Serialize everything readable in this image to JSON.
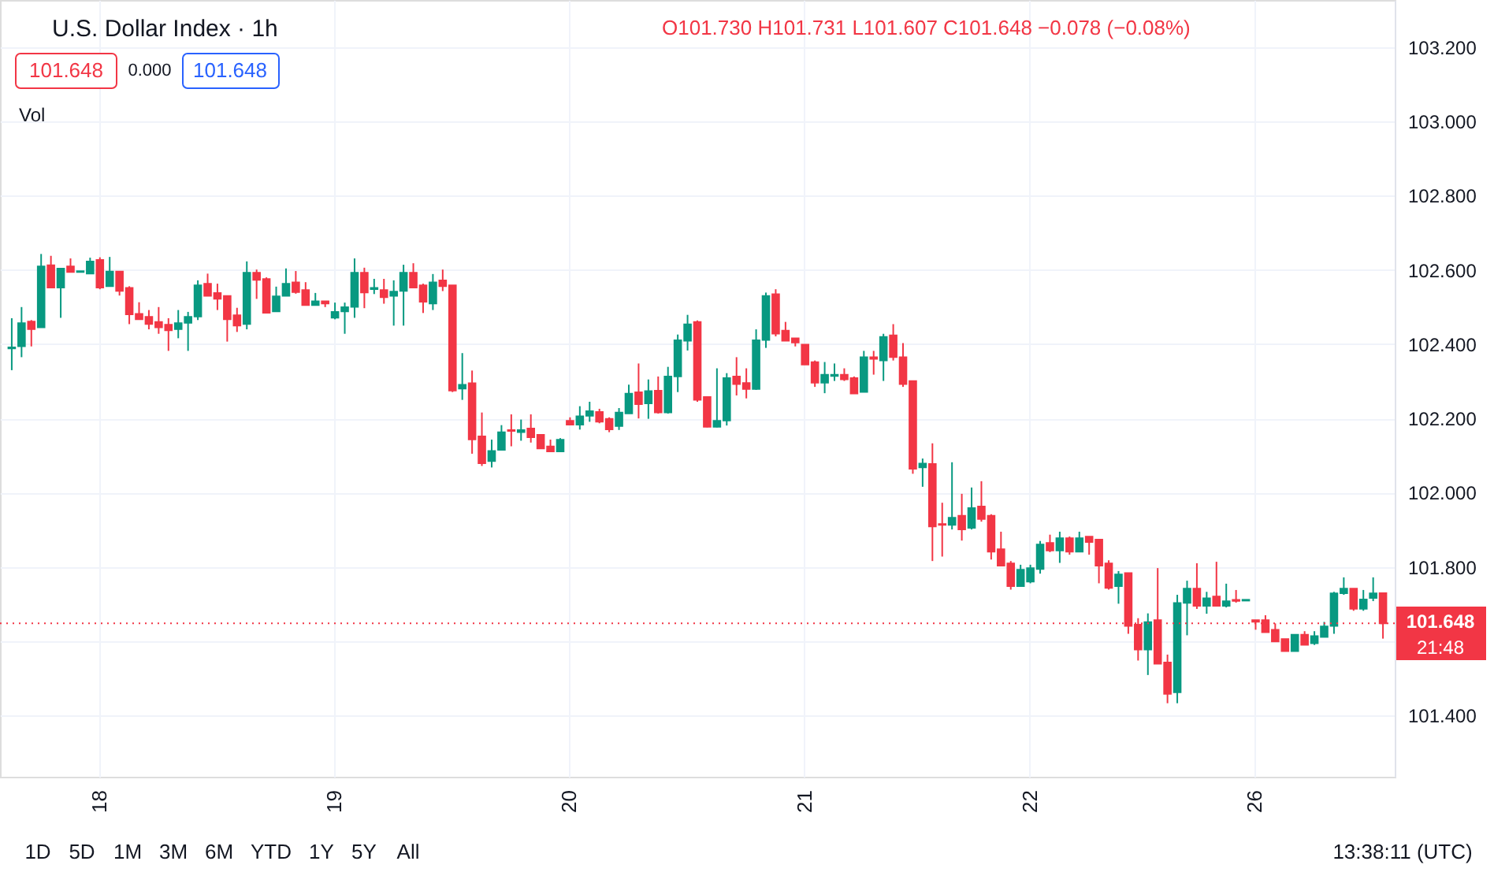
{
  "chart_data": {
    "type": "candlestick",
    "title": "U.S. Dollar Index · 1h",
    "ohlc": [
      [
        102.388,
        102.47,
        102.33,
        102.392
      ],
      [
        102.394,
        102.5,
        102.365,
        102.457
      ],
      [
        102.461,
        102.465,
        102.394,
        102.44
      ],
      [
        102.445,
        102.643,
        102.445,
        102.61
      ],
      [
        102.613,
        102.638,
        102.552,
        102.552
      ],
      [
        102.552,
        102.604,
        102.471,
        102.604
      ],
      [
        102.61,
        102.631,
        102.594,
        102.594
      ],
      [
        102.594,
        102.597,
        102.594,
        102.597
      ],
      [
        102.59,
        102.633,
        102.59,
        102.623
      ],
      [
        102.627,
        102.634,
        102.548,
        102.552
      ],
      [
        102.556,
        102.635,
        102.556,
        102.596
      ],
      [
        102.596,
        102.596,
        102.531,
        102.543
      ],
      [
        102.552,
        102.556,
        102.454,
        102.48
      ],
      [
        102.482,
        102.513,
        102.467,
        102.467
      ],
      [
        102.474,
        102.492,
        102.44,
        102.454
      ],
      [
        102.46,
        102.5,
        102.428,
        102.445
      ],
      [
        102.453,
        102.47,
        102.382,
        102.437
      ],
      [
        102.44,
        102.492,
        102.416,
        102.457
      ],
      [
        102.457,
        102.487,
        102.382,
        102.474
      ],
      [
        102.474,
        102.572,
        102.465,
        102.559
      ],
      [
        102.563,
        102.59,
        102.53,
        102.53
      ],
      [
        102.538,
        102.563,
        102.492,
        102.522
      ],
      [
        102.53,
        102.53,
        102.407,
        102.467
      ],
      [
        102.478,
        102.498,
        102.433,
        102.45
      ],
      [
        102.454,
        102.623,
        102.44,
        102.593
      ],
      [
        102.593,
        102.601,
        102.522,
        102.573
      ],
      [
        102.576,
        102.58,
        102.484,
        102.484
      ],
      [
        102.488,
        102.555,
        102.488,
        102.529
      ],
      [
        102.53,
        102.604,
        102.53,
        102.563
      ],
      [
        102.567,
        102.597,
        102.536,
        102.54
      ],
      [
        102.546,
        102.567,
        102.505,
        102.505
      ],
      [
        102.505,
        102.538,
        102.505,
        102.516
      ],
      [
        102.516,
        102.516,
        102.5,
        102.509
      ],
      [
        102.471,
        102.512,
        102.467,
        102.487
      ],
      [
        102.488,
        102.512,
        102.428,
        102.5
      ],
      [
        102.5,
        102.631,
        102.471,
        102.593
      ],
      [
        102.593,
        102.606,
        102.497,
        102.539
      ],
      [
        102.548,
        102.576,
        102.535,
        102.552
      ],
      [
        102.546,
        102.576,
        102.509,
        102.526
      ],
      [
        102.53,
        102.572,
        102.45,
        102.542
      ],
      [
        102.543,
        102.614,
        102.45,
        102.593
      ],
      [
        102.593,
        102.618,
        102.552,
        102.552
      ],
      [
        102.559,
        102.563,
        102.484,
        102.514
      ],
      [
        102.509,
        102.589,
        102.492,
        102.567
      ],
      [
        102.572,
        102.601,
        102.543,
        102.556
      ],
      [
        102.559,
        102.559,
        102.271,
        102.275
      ],
      [
        102.28,
        102.376,
        102.25,
        102.291
      ],
      [
        102.295,
        102.329,
        102.105,
        102.143
      ],
      [
        102.152,
        102.216,
        102.072,
        102.079
      ],
      [
        102.085,
        102.143,
        102.068,
        102.113
      ],
      [
        102.115,
        102.182,
        102.115,
        102.163
      ],
      [
        102.169,
        102.211,
        102.125,
        102.166
      ],
      [
        102.163,
        102.197,
        102.14,
        102.169
      ],
      [
        102.173,
        102.211,
        102.135,
        102.149
      ],
      [
        102.156,
        102.156,
        102.118,
        102.119
      ],
      [
        102.125,
        102.143,
        102.111,
        102.111
      ],
      [
        102.111,
        102.147,
        102.111,
        102.143
      ],
      [
        102.194,
        102.203,
        102.183,
        102.183
      ],
      [
        102.183,
        102.233,
        102.17,
        102.206
      ],
      [
        102.207,
        102.245,
        102.191,
        102.22
      ],
      [
        102.218,
        102.226,
        102.187,
        102.191
      ],
      [
        102.199,
        102.203,
        102.163,
        102.17
      ],
      [
        102.179,
        102.228,
        102.169,
        102.216
      ],
      [
        102.213,
        102.291,
        102.213,
        102.267
      ],
      [
        102.271,
        102.348,
        102.2,
        102.238
      ],
      [
        102.24,
        102.305,
        102.199,
        102.274
      ],
      [
        102.275,
        102.313,
        102.213,
        102.216
      ],
      [
        102.216,
        102.339,
        102.213,
        102.313
      ],
      [
        102.313,
        102.426,
        102.271,
        102.411
      ],
      [
        102.409,
        102.479,
        102.383,
        102.454
      ],
      [
        102.46,
        102.464,
        102.245,
        102.25
      ],
      [
        102.258,
        102.258,
        102.176,
        102.177
      ],
      [
        102.177,
        102.335,
        102.176,
        102.194
      ],
      [
        102.194,
        102.322,
        102.181,
        102.309
      ],
      [
        102.313,
        102.365,
        102.262,
        102.292
      ],
      [
        102.296,
        102.335,
        102.254,
        102.279
      ],
      [
        102.279,
        102.44,
        102.277,
        102.411
      ],
      [
        102.411,
        102.539,
        102.39,
        102.53
      ],
      [
        102.535,
        102.548,
        102.421,
        102.428
      ],
      [
        102.437,
        102.46,
        102.409,
        102.409
      ],
      [
        102.416,
        102.416,
        102.394,
        102.404
      ],
      [
        102.399,
        102.399,
        102.345,
        102.345
      ],
      [
        102.352,
        102.356,
        102.285,
        102.296
      ],
      [
        102.296,
        102.352,
        102.268,
        102.318
      ],
      [
        102.314,
        102.348,
        102.301,
        102.318
      ],
      [
        102.318,
        102.335,
        102.301,
        102.305
      ],
      [
        102.309,
        102.313,
        102.267,
        102.267
      ],
      [
        102.271,
        102.382,
        102.271,
        102.365
      ],
      [
        102.365,
        102.382,
        102.318,
        102.36
      ],
      [
        102.356,
        102.428,
        102.301,
        102.42
      ],
      [
        102.424,
        102.454,
        102.356,
        102.365
      ],
      [
        102.365,
        102.403,
        102.285,
        102.292
      ],
      [
        102.301,
        102.301,
        102.051,
        102.064
      ],
      [
        102.068,
        102.092,
        102.016,
        102.079
      ],
      [
        102.078,
        102.133,
        101.816,
        101.909
      ],
      [
        101.916,
        101.973,
        101.828,
        101.913
      ],
      [
        101.913,
        102.082,
        101.901,
        101.933
      ],
      [
        101.938,
        101.997,
        101.871,
        101.901
      ],
      [
        101.905,
        102.014,
        101.901,
        101.959
      ],
      [
        101.963,
        102.031,
        101.922,
        101.929
      ],
      [
        101.938,
        101.942,
        101.82,
        101.841
      ],
      [
        101.848,
        101.895,
        101.803,
        101.803
      ],
      [
        101.81,
        101.816,
        101.739,
        101.748
      ],
      [
        101.748,
        101.806,
        101.748,
        101.793
      ],
      [
        101.76,
        101.806,
        101.756,
        101.797
      ],
      [
        101.794,
        101.87,
        101.782,
        101.861
      ],
      [
        101.865,
        101.887,
        101.84,
        101.844
      ],
      [
        101.844,
        101.895,
        101.811,
        101.878
      ],
      [
        101.878,
        101.882,
        101.833,
        101.841
      ],
      [
        101.841,
        101.895,
        101.841,
        101.878
      ],
      [
        101.882,
        101.882,
        101.833,
        101.867
      ],
      [
        101.874,
        101.874,
        101.756,
        101.803
      ],
      [
        101.81,
        101.818,
        101.739,
        101.743
      ],
      [
        101.748,
        101.789,
        101.701,
        101.78
      ],
      [
        101.784,
        101.784,
        101.62,
        101.641
      ],
      [
        101.645,
        101.662,
        101.548,
        101.577
      ],
      [
        101.577,
        101.675,
        101.509,
        101.652
      ],
      [
        101.657,
        101.797,
        101.539,
        101.539
      ],
      [
        101.543,
        101.564,
        101.433,
        101.458
      ],
      [
        101.462,
        101.725,
        101.433,
        101.703
      ],
      [
        101.703,
        101.763,
        101.616,
        101.742
      ],
      [
        101.742,
        101.81,
        101.687,
        101.695
      ],
      [
        101.695,
        101.733,
        101.674,
        101.716
      ],
      [
        101.721,
        101.814,
        101.695,
        101.695
      ],
      [
        101.695,
        101.755,
        101.691,
        101.708
      ],
      [
        101.712,
        101.738,
        101.704,
        101.708
      ],
      [
        101.709,
        101.712,
        101.709,
        101.712
      ],
      [
        101.657,
        101.657,
        101.631,
        101.652
      ],
      [
        101.657,
        101.67,
        101.624,
        101.624
      ],
      [
        101.631,
        101.648,
        101.599,
        101.599
      ],
      [
        101.606,
        101.606,
        101.573,
        101.573
      ],
      [
        101.573,
        101.618,
        101.573,
        101.618
      ],
      [
        101.618,
        101.627,
        101.59,
        101.59
      ],
      [
        101.594,
        101.627,
        101.59,
        101.614
      ],
      [
        101.611,
        101.652,
        101.611,
        101.64
      ],
      [
        101.641,
        101.733,
        101.62,
        101.729
      ],
      [
        101.729,
        101.772,
        101.725,
        101.742
      ],
      [
        101.742,
        101.742,
        101.682,
        101.687
      ],
      [
        101.687,
        101.738,
        101.682,
        101.713
      ],
      [
        101.716,
        101.772,
        101.708,
        101.729
      ],
      [
        101.73,
        101.731,
        101.607,
        101.648
      ]
    ],
    "colors": [
      "#089981",
      "#089981",
      "#f23645",
      "#089981",
      "#f23645",
      "#089981",
      "#f23645",
      "#089981",
      "#089981",
      "#f23645",
      "#089981",
      "#f23645",
      "#f23645",
      "#f23645",
      "#f23645",
      "#f23645",
      "#f23645",
      "#089981",
      "#089981",
      "#089981",
      "#f23645",
      "#f23645",
      "#f23645",
      "#f23645",
      "#089981",
      "#f23645",
      "#f23645",
      "#089981",
      "#089981",
      "#f23645",
      "#f23645",
      "#089981",
      "#f23645",
      "#089981",
      "#089981",
      "#089981",
      "#f23645",
      "#089981",
      "#f23645",
      "#089981",
      "#089981",
      "#f23645",
      "#f23645",
      "#089981",
      "#f23645",
      "#f23645",
      "#089981",
      "#f23645",
      "#f23645",
      "#089981",
      "#089981",
      "#f23645",
      "#089981",
      "#f23645",
      "#f23645",
      "#f23645",
      "#089981",
      "#f23645",
      "#089981",
      "#089981",
      "#f23645",
      "#f23645",
      "#089981",
      "#089981",
      "#f23645",
      "#089981",
      "#f23645",
      "#089981",
      "#089981",
      "#089981",
      "#f23645",
      "#f23645",
      "#089981",
      "#089981",
      "#f23645",
      "#f23645",
      "#089981",
      "#089981",
      "#f23645",
      "#f23645",
      "#f23645",
      "#f23645",
      "#f23645",
      "#089981",
      "#089981",
      "#f23645",
      "#f23645",
      "#089981",
      "#f23645",
      "#089981",
      "#f23645",
      "#f23645",
      "#f23645",
      "#089981",
      "#f23645",
      "#f23645",
      "#089981",
      "#f23645",
      "#089981",
      "#f23645",
      "#f23645",
      "#f23645",
      "#f23645",
      "#089981",
      "#089981",
      "#089981",
      "#f23645",
      "#089981",
      "#f23645",
      "#089981",
      "#f23645",
      "#f23645",
      "#f23645",
      "#089981",
      "#f23645",
      "#f23645",
      "#089981",
      "#f23645",
      "#f23645",
      "#089981",
      "#089981",
      "#f23645",
      "#089981",
      "#f23645",
      "#089981",
      "#f23645",
      "#089981",
      "#f23645",
      "#f23645",
      "#f23645",
      "#f23645",
      "#089981",
      "#f23645",
      "#089981",
      "#089981",
      "#089981",
      "#089981",
      "#f23645",
      "#089981",
      "#089981",
      "#f23645"
    ],
    "categories": [
      null,
      null,
      null,
      null,
      null,
      null,
      null,
      null,
      null,
      "18",
      null,
      null,
      null,
      null,
      null,
      null,
      null,
      null,
      null,
      null,
      null,
      null,
      null,
      null,
      null,
      null,
      null,
      null,
      null,
      null,
      null,
      null,
      null,
      "19",
      null,
      null,
      null,
      null,
      null,
      null,
      null,
      null,
      null,
      null,
      null,
      null,
      null,
      null,
      null,
      null,
      null,
      null,
      null,
      null,
      null,
      null,
      null,
      "20",
      null,
      null,
      null,
      null,
      null,
      null,
      null,
      null,
      null,
      null,
      null,
      null,
      null,
      null,
      null,
      null,
      null,
      null,
      null,
      null,
      null,
      null,
      null,
      "21",
      null,
      null,
      null,
      null,
      null,
      null,
      null,
      null,
      null,
      null,
      null,
      null,
      null,
      null,
      null,
      null,
      null,
      null,
      null,
      null,
      null,
      null,
      "22",
      null,
      null,
      null,
      null,
      null,
      null,
      null,
      null,
      null,
      null,
      null,
      null,
      null,
      null,
      null,
      null,
      null,
      null,
      null,
      null,
      null,
      null,
      "26",
      null,
      null,
      null,
      null,
      null,
      null,
      null,
      null,
      null,
      null,
      null,
      null,
      null
    ],
    "ylim": [
      101.235,
      103.327
    ],
    "yticks": [
      {
        "value": 101.4,
        "label": "101.400"
      },
      {
        "value": 101.6,
        "label": null
      },
      {
        "value": 101.8,
        "label": "101.800"
      },
      {
        "value": 102.0,
        "label": "102.000"
      },
      {
        "value": 102.2,
        "label": "102.200"
      },
      {
        "value": 102.4,
        "label": "102.400"
      },
      {
        "value": 102.6,
        "label": "102.600"
      },
      {
        "value": 102.8,
        "label": "102.800"
      },
      {
        "value": 103.0,
        "label": "103.000"
      },
      {
        "value": 103.2,
        "label": "103.200"
      }
    ],
    "grid": true,
    "ref_lines": [
      {
        "axis": "y",
        "value": 101.648,
        "label": "101.648",
        "color": "#f23645",
        "line_style": "dotted"
      }
    ],
    "annotations": [
      "O101.730 H101.731 L101.607 C101.648 −0.078 (−0.08%)",
      "101.648",
      "0.000",
      "101.648",
      "Vol",
      "21:48",
      "1D",
      "5D",
      "1M",
      "3M",
      "6M",
      "YTD",
      "1Y",
      "5Y",
      "All",
      "13:38:11 (UTC)"
    ]
  }
}
